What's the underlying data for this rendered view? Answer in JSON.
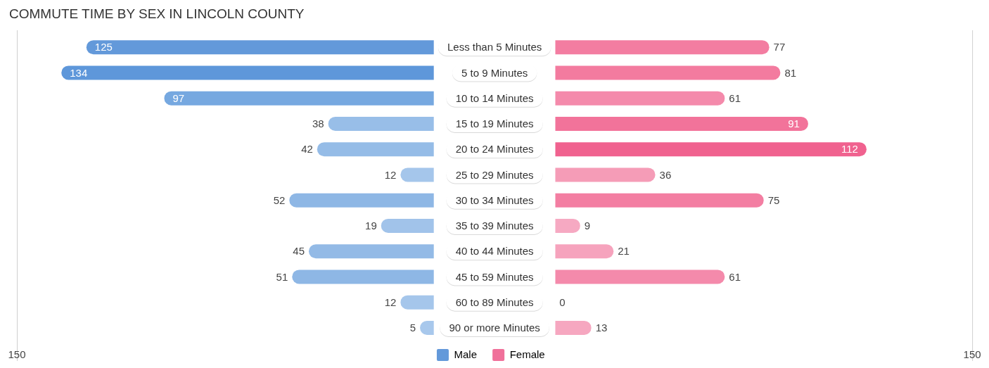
{
  "chart_data": [
    {
      "type": "bar",
      "orientation": "horizontal",
      "title": "COMMUTE TIME BY SEX IN LINCOLN COUNTY",
      "categories": [
        "Less than 5 Minutes",
        "5 to 9 Minutes",
        "10 to 14 Minutes",
        "15 to 19 Minutes",
        "20 to 24 Minutes",
        "25 to 29 Minutes",
        "30 to 34 Minutes",
        "35 to 39 Minutes",
        "40 to 44 Minutes",
        "45 to 59 Minutes",
        "60 to 89 Minutes",
        "90 or more Minutes"
      ],
      "series": [
        {
          "name": "Male",
          "color": "#6399da",
          "colors": [
            "#6399da",
            "#5e97da",
            "#76a8e0",
            "#98bee8",
            "#95bce7",
            "#a5c6eb",
            "#8eb7e5",
            "#a1c3ea",
            "#93bae6",
            "#8eb7e5",
            "#a5c6eb",
            "#a8c8ec"
          ],
          "values": [
            125,
            134,
            97,
            38,
            42,
            12,
            52,
            19,
            45,
            51,
            12,
            5
          ]
        }
      ],
      "xlim": [
        150,
        0
      ],
      "xticks": [
        150
      ],
      "legend": "bottom right",
      "data_labels": true,
      "tick_labels": "x"
    },
    {
      "type": "bar",
      "orientation": "horizontal",
      "categories": [
        "Less than 5 Minutes",
        "5 to 9 Minutes",
        "10 to 14 Minutes",
        "15 to 19 Minutes",
        "20 to 24 Minutes",
        "25 to 29 Minutes",
        "30 to 34 Minutes",
        "35 to 39 Minutes",
        "40 to 44 Minutes",
        "45 to 59 Minutes",
        "60 to 89 Minutes",
        "90 or more Minutes"
      ],
      "series": [
        {
          "name": "Female",
          "color": "#f0709a",
          "colors": [
            "#f37da1",
            "#f37b9f",
            "#f48aab",
            "#f2739a",
            "#f0628f",
            "#f59cb7",
            "#f37ea2",
            "#f6a9c2",
            "#f6a3bd",
            "#f48aab",
            "#f7adc5",
            "#f6a7c0"
          ],
          "values": [
            77,
            81,
            61,
            91,
            112,
            36,
            75,
            9,
            21,
            61,
            0,
            13
          ]
        }
      ],
      "xlim": [
        0,
        150
      ],
      "xticks": [
        150
      ],
      "legend": "bottom left",
      "data_labels": true
    }
  ]
}
